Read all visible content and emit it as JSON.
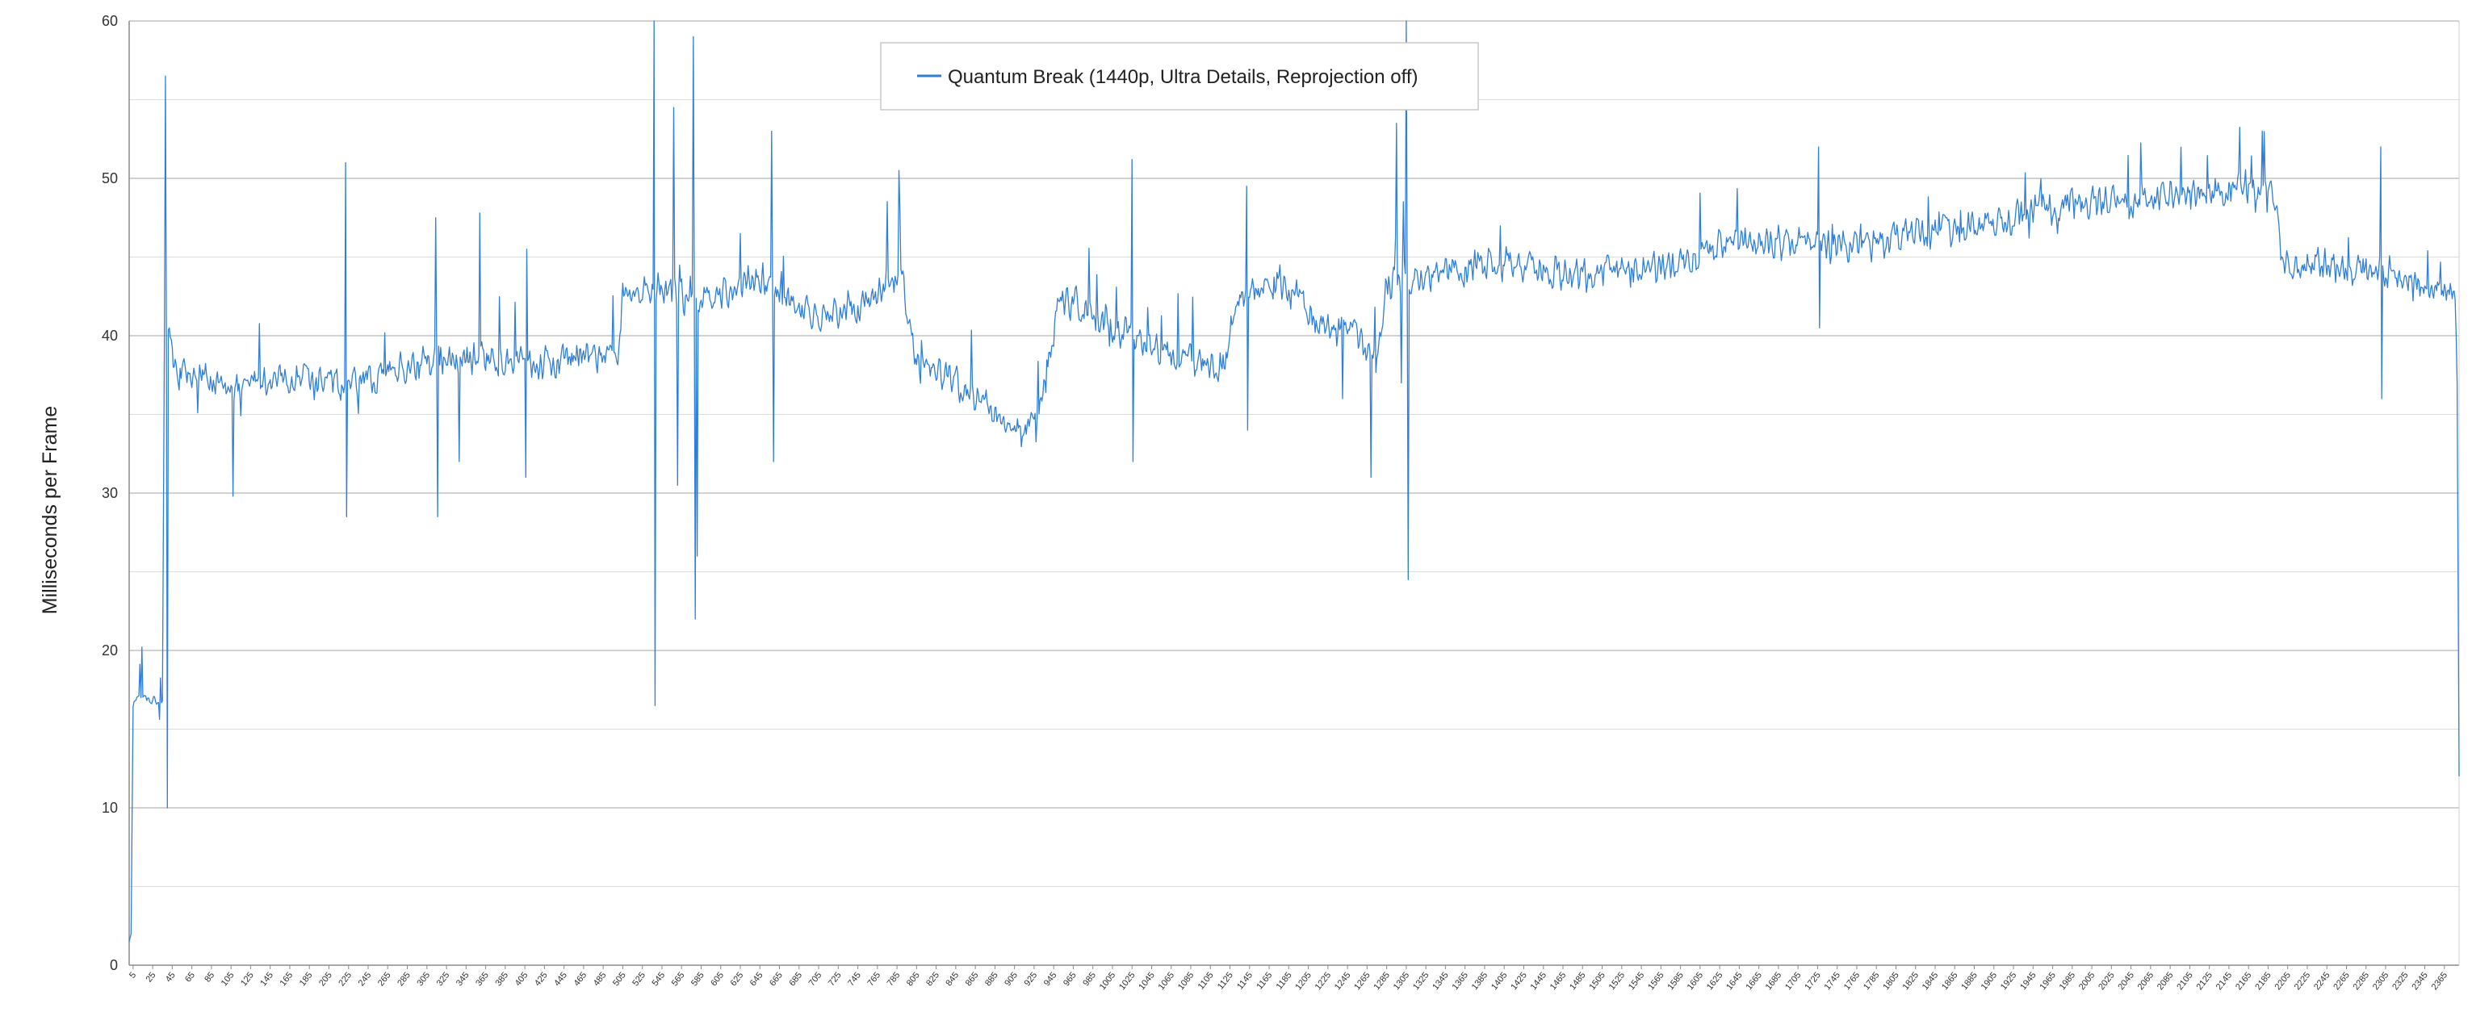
{
  "chart_data": {
    "type": "line",
    "title": "",
    "xlabel": "",
    "ylabel": "Milliseconds per Frame",
    "xlim": [
      1,
      2380
    ],
    "ylim": [
      0,
      60
    ],
    "y_ticks": [
      0,
      10,
      20,
      30,
      40,
      50,
      60
    ],
    "x_tick_start": 5,
    "x_tick_step": 20,
    "x_tick_end": 2365,
    "minor_gridlines": [
      5,
      15,
      25,
      35,
      45,
      55
    ],
    "grid": true,
    "legend": "top-center",
    "color": "#2F7ED8",
    "series": [
      {
        "name": "Quantum Break (1440p, Ultra Details, Reprojection off)",
        "noise_ms": 1.3,
        "profile": [
          [
            1,
            1.5
          ],
          [
            3,
            2.0
          ],
          [
            5,
            16.5
          ],
          [
            8,
            17.0
          ],
          [
            35,
            16.8
          ],
          [
            37,
            40.0
          ],
          [
            40,
            40.5
          ],
          [
            50,
            37.5
          ],
          [
            100,
            36.8
          ],
          [
            200,
            37.2
          ],
          [
            230,
            36.8
          ],
          [
            260,
            37.5
          ],
          [
            300,
            38.5
          ],
          [
            400,
            38.3
          ],
          [
            500,
            38.8
          ],
          [
            505,
            43.0
          ],
          [
            540,
            43.0
          ],
          [
            560,
            42.5
          ],
          [
            600,
            42.0
          ],
          [
            640,
            44.0
          ],
          [
            700,
            41.0
          ],
          [
            760,
            42.5
          ],
          [
            790,
            44.5
          ],
          [
            800,
            39.0
          ],
          [
            830,
            37.5
          ],
          [
            870,
            36.0
          ],
          [
            900,
            34.5
          ],
          [
            925,
            34.0
          ],
          [
            940,
            38.0
          ],
          [
            950,
            42.5
          ],
          [
            980,
            41.5
          ],
          [
            1020,
            40.0
          ],
          [
            1060,
            39.0
          ],
          [
            1120,
            38.0
          ],
          [
            1130,
            42.5
          ],
          [
            1180,
            43.5
          ],
          [
            1210,
            41.0
          ],
          [
            1250,
            40.0
          ],
          [
            1275,
            38.5
          ],
          [
            1285,
            43.5
          ],
          [
            1330,
            44.0
          ],
          [
            1400,
            44.5
          ],
          [
            1460,
            44.0
          ],
          [
            1520,
            44.0
          ],
          [
            1580,
            44.5
          ],
          [
            1640,
            46.0
          ],
          [
            1700,
            46.0
          ],
          [
            1760,
            45.5
          ],
          [
            1820,
            46.5
          ],
          [
            1900,
            47.0
          ],
          [
            1980,
            48.5
          ],
          [
            2040,
            48.5
          ],
          [
            2100,
            49.0
          ],
          [
            2170,
            49.5
          ],
          [
            2190,
            49.0
          ],
          [
            2200,
            44.5
          ],
          [
            2260,
            44.5
          ],
          [
            2300,
            44.0
          ],
          [
            2360,
            43.0
          ],
          [
            2376,
            43.0
          ],
          [
            2378,
            37.0
          ],
          [
            2380,
            12.0
          ]
        ],
        "spikes": [
          [
            38,
            56.5
          ],
          [
            40,
            10.0
          ],
          [
            107,
            29.8
          ],
          [
            222,
            51.0
          ],
          [
            223,
            28.5
          ],
          [
            314,
            47.5
          ],
          [
            316,
            28.5
          ],
          [
            338,
            32.0
          ],
          [
            359,
            47.8
          ],
          [
            406,
            31.0
          ],
          [
            407,
            45.5
          ],
          [
            537,
            60.0
          ],
          [
            538,
            16.5
          ],
          [
            557,
            54.5
          ],
          [
            561,
            30.5
          ],
          [
            577,
            59.0
          ],
          [
            579,
            22.0
          ],
          [
            581,
            26.0
          ],
          [
            657,
            53.0
          ],
          [
            659,
            32.0
          ],
          [
            787,
            50.5
          ],
          [
            1025,
            51.2
          ],
          [
            1026,
            32.0
          ],
          [
            1142,
            49.5
          ],
          [
            1143,
            34.0
          ],
          [
            1240,
            36.0
          ],
          [
            1269,
            31.0
          ],
          [
            1295,
            53.5
          ],
          [
            1300,
            37.0
          ],
          [
            1305,
            60.0
          ],
          [
            1307,
            24.5
          ],
          [
            1726,
            52.0
          ],
          [
            1727,
            40.5
          ],
          [
            2179,
            53.0
          ],
          [
            2300,
            52.0
          ],
          [
            2301,
            36.0
          ]
        ]
      }
    ]
  }
}
